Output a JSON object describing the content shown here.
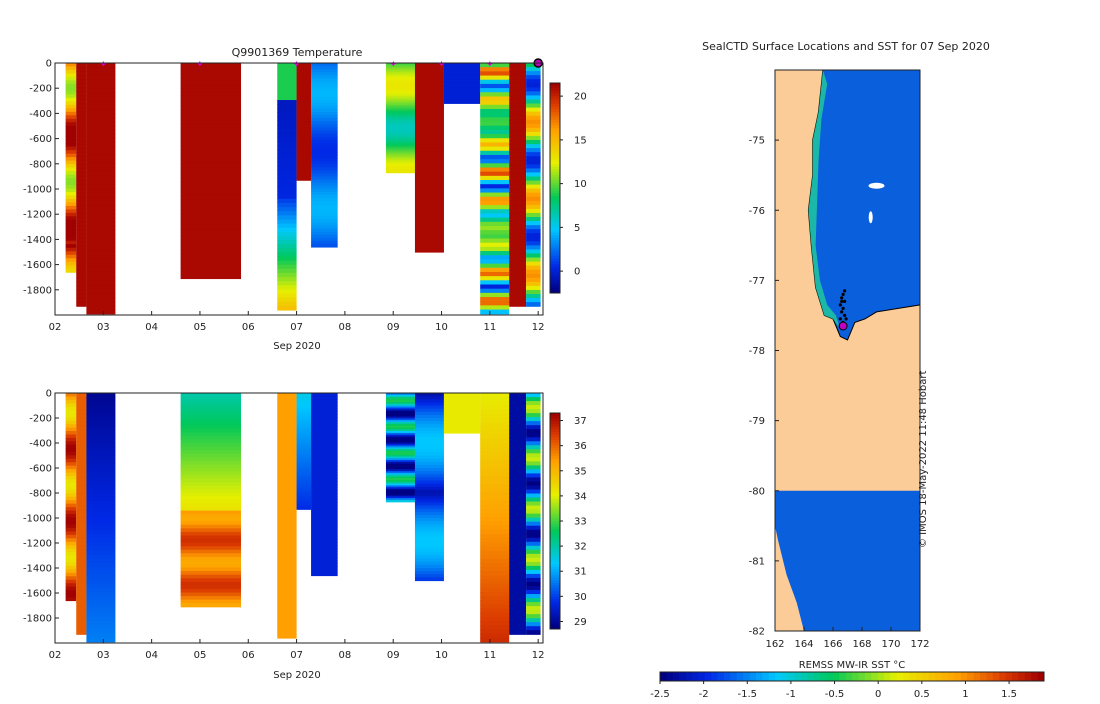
{
  "chart_data": [
    {
      "type": "heatmap",
      "title": "Q9901369  Temperature",
      "xlabel": "Sep 2020",
      "ylabel": "",
      "x_ticks": [
        "02",
        "03",
        "04",
        "05",
        "06",
        "07",
        "08",
        "09",
        "10",
        "11",
        "12"
      ],
      "xlim": [
        2,
        12.1
      ],
      "ylim": [
        -2000,
        0
      ],
      "y_ticks": [
        0,
        -200,
        -400,
        -600,
        -800,
        -1000,
        -1200,
        -1400,
        -1600,
        -1800
      ],
      "colorbar": {
        "min": -2.5,
        "max": 21.5,
        "ticks": [
          0,
          5,
          10,
          15,
          20
        ]
      },
      "surface_markers": [
        3.0,
        5.0,
        7.0,
        9.0,
        10.0,
        11.0
      ],
      "last_marker": 12.0,
      "profiles": [
        {
          "t0": 2.22,
          "t1": 2.44,
          "depth": 1660,
          "pattern": "mixed"
        },
        {
          "t0": 2.44,
          "t1": 2.65,
          "depth": 1930,
          "pattern": "warm"
        },
        {
          "t0": 2.65,
          "t1": 3.25,
          "depth": 1990,
          "pattern": "warm"
        },
        {
          "t0": 4.6,
          "t1": 5.85,
          "depth": 1710,
          "pattern": "warm"
        },
        {
          "t0": 6.6,
          "t1": 7.0,
          "depth": 1960,
          "pattern": "mixed2"
        },
        {
          "t0": 7.0,
          "t1": 7.3,
          "depth": 930,
          "pattern": "warm"
        },
        {
          "t0": 7.3,
          "t1": 7.85,
          "depth": 1460,
          "pattern": "blue"
        },
        {
          "t0": 8.85,
          "t1": 9.45,
          "depth": 870,
          "pattern": "greenyellow"
        },
        {
          "t0": 9.45,
          "t1": 10.05,
          "depth": 1500,
          "pattern": "warm"
        },
        {
          "t0": 10.05,
          "t1": 10.8,
          "depth": 320,
          "pattern": "darkblue"
        },
        {
          "t0": 10.8,
          "t1": 11.4,
          "depth": 1990,
          "pattern": "striped"
        },
        {
          "t0": 11.4,
          "t1": 11.75,
          "depth": 1930,
          "pattern": "warm"
        },
        {
          "t0": 11.75,
          "t1": 12.05,
          "depth": 1930,
          "pattern": "coldmix"
        }
      ]
    },
    {
      "type": "heatmap",
      "title": "",
      "xlabel": "Sep 2020",
      "ylabel": "",
      "x_ticks": [
        "02",
        "03",
        "04",
        "05",
        "06",
        "07",
        "08",
        "09",
        "10",
        "11",
        "12"
      ],
      "xlim": [
        2,
        12.1
      ],
      "ylim": [
        -2000,
        0
      ],
      "y_ticks": [
        0,
        -200,
        -400,
        -600,
        -800,
        -1000,
        -1200,
        -1400,
        -1600,
        -1800
      ],
      "colorbar": {
        "min": 28.7,
        "max": 37.3,
        "ticks": [
          29,
          30,
          31,
          32,
          33,
          34,
          35,
          36,
          37
        ]
      },
      "profiles": [
        {
          "t0": 2.22,
          "t1": 2.44,
          "depth": 1660,
          "pattern": "orangemix"
        },
        {
          "t0": 2.44,
          "t1": 2.65,
          "depth": 1930,
          "pattern": "orange"
        },
        {
          "t0": 2.65,
          "t1": 3.25,
          "depth": 1990,
          "pattern": "navyblue"
        },
        {
          "t0": 4.6,
          "t1": 5.85,
          "depth": 1710,
          "pattern": "cyanyellowbrown"
        },
        {
          "t0": 6.6,
          "t1": 7.0,
          "depth": 1960,
          "pattern": "orangeflat"
        },
        {
          "t0": 7.0,
          "t1": 7.3,
          "depth": 930,
          "pattern": "bluefade"
        },
        {
          "t0": 7.3,
          "t1": 7.85,
          "depth": 1460,
          "pattern": "blueflat"
        },
        {
          "t0": 8.85,
          "t1": 9.45,
          "depth": 870,
          "pattern": "bluegreen"
        },
        {
          "t0": 9.45,
          "t1": 10.05,
          "depth": 1500,
          "pattern": "bluestreak"
        },
        {
          "t0": 10.05,
          "t1": 10.8,
          "depth": 320,
          "pattern": "yellow"
        },
        {
          "t0": 10.8,
          "t1": 11.4,
          "depth": 1990,
          "pattern": "yellowbrown"
        },
        {
          "t0": 11.4,
          "t1": 11.75,
          "depth": 1930,
          "pattern": "navyflat"
        },
        {
          "t0": 11.75,
          "t1": 12.05,
          "depth": 1930,
          "pattern": "cyanstripe"
        }
      ]
    },
    {
      "type": "heatmap",
      "title": "SealCTD Surface Locations and SST for 07 Sep 2020",
      "xlabel": "",
      "ylabel": "",
      "xlim": [
        162,
        172
      ],
      "ylim": [
        -82,
        -74
      ],
      "x_ticks": [
        162,
        164,
        166,
        168,
        170,
        172
      ],
      "y_ticks": [
        -75,
        -76,
        -77,
        -78,
        -79,
        -80,
        -81,
        -82
      ],
      "land_fill": "#fccc98",
      "ocean_fill": "#0a5fdc",
      "colorbar": {
        "label": "REMSS MW-IR SST °C",
        "ticks": [
          -2.5,
          -2,
          -1.5,
          -1,
          -0.5,
          0,
          0.5,
          1,
          1.5
        ]
      },
      "track_points": [
        [
          166.8,
          -77.15
        ],
        [
          166.7,
          -77.2
        ],
        [
          166.6,
          -77.25
        ],
        [
          166.6,
          -77.3
        ],
        [
          166.8,
          -77.3
        ],
        [
          166.5,
          -77.35
        ],
        [
          166.7,
          -77.4
        ],
        [
          166.6,
          -77.45
        ],
        [
          166.8,
          -77.5
        ],
        [
          166.5,
          -77.55
        ],
        [
          166.7,
          -77.6
        ],
        [
          166.9,
          -77.55
        ],
        [
          166.6,
          -77.65
        ]
      ],
      "current_position": [
        166.7,
        -77.65
      ],
      "watermark": "© IMOS 18-May-2022 11:48 Hobart"
    }
  ]
}
